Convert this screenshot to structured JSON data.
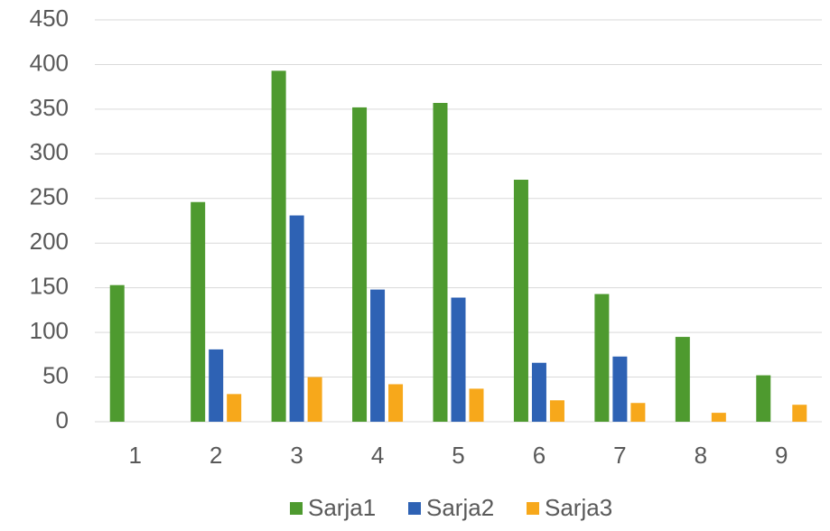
{
  "chart_data": {
    "type": "bar",
    "categories": [
      "1",
      "2",
      "3",
      "4",
      "5",
      "6",
      "7",
      "8",
      "9"
    ],
    "series": [
      {
        "name": "Sarja1",
        "color": "#4e9a2f",
        "values": [
          153,
          246,
          393,
          352,
          357,
          271,
          143,
          95,
          52
        ]
      },
      {
        "name": "Sarja2",
        "color": "#2e62b4",
        "values": [
          0,
          81,
          231,
          148,
          139,
          66,
          73,
          0,
          0
        ]
      },
      {
        "name": "Sarja3",
        "color": "#f7a81b",
        "values": [
          0,
          31,
          50,
          42,
          37,
          24,
          21,
          10,
          19
        ]
      }
    ],
    "ylim": [
      0,
      450
    ],
    "yticks": [
      0,
      50,
      100,
      150,
      200,
      250,
      300,
      350,
      400,
      450
    ],
    "grid": true,
    "legend": "bottom"
  }
}
